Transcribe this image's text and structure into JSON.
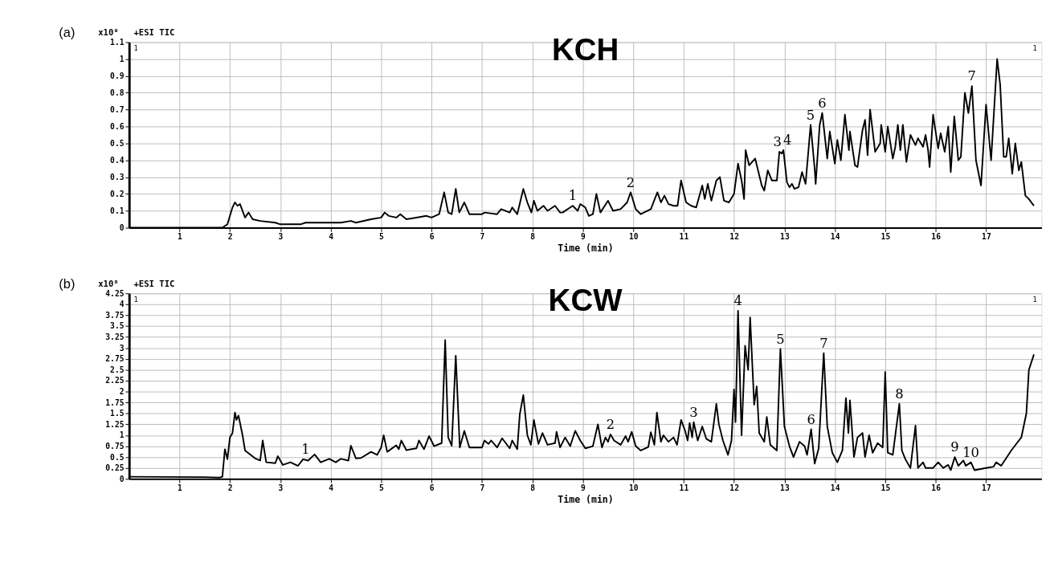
{
  "chart_data": [
    {
      "type": "line",
      "title": "KCH",
      "xlabel": "Time (min)",
      "xlim": [
        0,
        18.1
      ],
      "xticks": [
        1,
        2,
        3,
        4,
        5,
        6,
        7,
        8,
        9,
        10,
        11,
        12,
        13,
        14,
        15,
        16,
        17
      ],
      "ylim": [
        0,
        1.1
      ],
      "yticks": [
        0,
        0.1,
        0.2,
        0.3,
        0.4,
        0.5,
        0.6,
        0.7,
        0.8,
        0.9,
        1,
        1.1
      ],
      "grid": true,
      "marker": "none",
      "line_style": "solid",
      "annotations": [
        "(a)",
        "x10⁹",
        "+ESI TIC",
        "1",
        "1",
        {
          "text": "1",
          "x": 8.8,
          "y": 0.13
        },
        {
          "text": "2",
          "x": 9.95,
          "y": 0.21
        },
        {
          "text": "3",
          "x": 12.86,
          "y": 0.45
        },
        {
          "text": "4",
          "x": 13.06,
          "y": 0.46
        },
        {
          "text": "5",
          "x": 13.52,
          "y": 0.61
        },
        {
          "text": "6",
          "x": 13.75,
          "y": 0.68
        },
        {
          "text": "7",
          "x": 16.72,
          "y": 0.84
        }
      ],
      "series": [
        {
          "color": "#000000",
          "x": [
            0,
            1.85,
            1.95,
            2.05,
            2.1,
            2.15,
            2.2,
            2.3,
            2.37,
            2.45,
            2.6,
            2.9,
            3.0,
            3.4,
            3.5,
            3.6,
            3.8,
            4.2,
            4.4,
            4.5,
            4.8,
            5.0,
            5.07,
            5.15,
            5.3,
            5.38,
            5.5,
            5.9,
            6.0,
            6.15,
            6.25,
            6.33,
            6.4,
            6.48,
            6.55,
            6.65,
            6.75,
            7.0,
            7.05,
            7.3,
            7.38,
            7.55,
            7.6,
            7.7,
            7.78,
            7.82,
            7.9,
            7.98,
            8.03,
            8.1,
            8.22,
            8.3,
            8.45,
            8.55,
            8.6,
            8.8,
            8.9,
            8.95,
            9.05,
            9.12,
            9.2,
            9.27,
            9.35,
            9.5,
            9.6,
            9.75,
            9.88,
            9.95,
            10.05,
            10.15,
            10.35,
            10.48,
            10.55,
            10.62,
            10.7,
            10.8,
            10.88,
            10.95,
            11.05,
            11.15,
            11.25,
            11.37,
            11.42,
            11.48,
            11.55,
            11.65,
            11.72,
            11.8,
            11.9,
            12.0,
            12.08,
            12.15,
            12.2,
            12.23,
            12.3,
            12.42,
            12.55,
            12.6,
            12.67,
            12.75,
            12.85,
            12.9,
            12.95,
            12.98,
            13.05,
            13.1,
            13.15,
            13.2,
            13.28,
            13.35,
            13.42,
            13.52,
            13.6,
            13.62,
            13.7,
            13.75,
            13.85,
            13.9,
            14.0,
            14.05,
            14.12,
            14.2,
            14.28,
            14.3,
            14.4,
            14.45,
            14.55,
            14.6,
            14.65,
            14.7,
            14.8,
            14.9,
            14.92,
            15.0,
            15.05,
            15.15,
            15.2,
            15.25,
            15.3,
            15.35,
            15.42,
            15.5,
            15.6,
            15.65,
            15.75,
            15.8,
            15.85,
            15.88,
            15.95,
            16.05,
            16.1,
            16.18,
            16.25,
            16.3,
            16.37,
            16.45,
            16.5,
            16.58,
            16.65,
            16.72,
            16.8,
            16.9,
            17.0,
            17.1,
            17.22,
            17.28,
            17.35,
            17.4,
            17.45,
            17.52,
            17.58,
            17.65,
            17.7,
            17.78,
            17.85,
            17.95
          ],
          "values": [
            0,
            0,
            0.02,
            0.12,
            0.15,
            0.13,
            0.14,
            0.06,
            0.09,
            0.05,
            0.04,
            0.03,
            0.02,
            0.02,
            0.03,
            0.03,
            0.03,
            0.03,
            0.04,
            0.03,
            0.05,
            0.06,
            0.09,
            0.07,
            0.06,
            0.08,
            0.05,
            0.07,
            0.06,
            0.08,
            0.21,
            0.09,
            0.08,
            0.23,
            0.09,
            0.15,
            0.08,
            0.08,
            0.09,
            0.08,
            0.11,
            0.09,
            0.12,
            0.08,
            0.18,
            0.23,
            0.15,
            0.09,
            0.16,
            0.1,
            0.13,
            0.1,
            0.13,
            0.09,
            0.09,
            0.13,
            0.1,
            0.14,
            0.12,
            0.07,
            0.08,
            0.2,
            0.09,
            0.16,
            0.1,
            0.11,
            0.15,
            0.21,
            0.11,
            0.08,
            0.11,
            0.21,
            0.15,
            0.19,
            0.14,
            0.13,
            0.13,
            0.28,
            0.15,
            0.13,
            0.12,
            0.25,
            0.17,
            0.26,
            0.16,
            0.28,
            0.3,
            0.16,
            0.15,
            0.2,
            0.38,
            0.28,
            0.17,
            0.46,
            0.37,
            0.41,
            0.25,
            0.22,
            0.34,
            0.28,
            0.28,
            0.45,
            0.44,
            0.46,
            0.27,
            0.24,
            0.26,
            0.23,
            0.24,
            0.33,
            0.26,
            0.61,
            0.35,
            0.26,
            0.61,
            0.68,
            0.41,
            0.57,
            0.38,
            0.52,
            0.4,
            0.67,
            0.46,
            0.57,
            0.37,
            0.36,
            0.58,
            0.64,
            0.43,
            0.7,
            0.45,
            0.5,
            0.61,
            0.45,
            0.6,
            0.41,
            0.48,
            0.61,
            0.46,
            0.61,
            0.39,
            0.55,
            0.49,
            0.53,
            0.48,
            0.55,
            0.46,
            0.36,
            0.67,
            0.47,
            0.56,
            0.45,
            0.6,
            0.33,
            0.66,
            0.4,
            0.42,
            0.8,
            0.68,
            0.84,
            0.4,
            0.25,
            0.73,
            0.4,
            1.0,
            0.85,
            0.42,
            0.42,
            0.53,
            0.32,
            0.5,
            0.34,
            0.39,
            0.19,
            0.17,
            0.13
          ]
        }
      ]
    },
    {
      "type": "line",
      "title": "KCW",
      "xlabel": "Time (min)",
      "xlim": [
        0,
        18.1
      ],
      "xticks": [
        1,
        2,
        3,
        4,
        5,
        6,
        7,
        8,
        9,
        10,
        11,
        12,
        13,
        14,
        15,
        16,
        17
      ],
      "ylim": [
        0,
        4.25
      ],
      "yticks": [
        0,
        0.25,
        0.5,
        0.75,
        1,
        1.25,
        1.5,
        1.75,
        2,
        2.25,
        2.5,
        2.75,
        3,
        3.25,
        3.5,
        3.75,
        4,
        4.25
      ],
      "grid": true,
      "marker": "none",
      "line_style": "solid",
      "annotations": [
        "(b)",
        "x10⁸",
        "+ESI TIC",
        "1",
        "1",
        {
          "text": "1",
          "x": 3.5,
          "y": 0.45
        },
        {
          "text": "2",
          "x": 9.55,
          "y": 1.02
        },
        {
          "text": "3",
          "x": 11.2,
          "y": 1.3
        },
        {
          "text": "4",
          "x": 12.08,
          "y": 3.85
        },
        {
          "text": "5",
          "x": 12.92,
          "y": 2.98
        },
        {
          "text": "6",
          "x": 13.53,
          "y": 1.14
        },
        {
          "text": "7",
          "x": 13.78,
          "y": 2.88
        },
        {
          "text": "8",
          "x": 15.28,
          "y": 1.72
        },
        {
          "text": "9",
          "x": 16.38,
          "y": 0.5
        },
        {
          "text": "10",
          "x": 16.7,
          "y": 0.38
        }
      ],
      "series": [
        {
          "color": "#000000",
          "x": [
            0,
            1.5,
            1.8,
            1.85,
            1.9,
            1.95,
            2.0,
            2.05,
            2.1,
            2.13,
            2.17,
            2.25,
            2.3,
            2.5,
            2.6,
            2.65,
            2.72,
            2.9,
            2.95,
            3.05,
            3.2,
            3.35,
            3.45,
            3.55,
            3.68,
            3.8,
            3.97,
            4.1,
            4.2,
            4.35,
            4.4,
            4.5,
            4.6,
            4.8,
            4.92,
            5.0,
            5.05,
            5.12,
            5.3,
            5.35,
            5.4,
            5.5,
            5.7,
            5.75,
            5.85,
            5.95,
            6.05,
            6.2,
            6.27,
            6.33,
            6.4,
            6.48,
            6.56,
            6.65,
            6.75,
            7.0,
            7.05,
            7.13,
            7.18,
            7.3,
            7.4,
            7.55,
            7.6,
            7.7,
            7.75,
            7.82,
            7.9,
            7.97,
            8.03,
            8.12,
            8.2,
            8.3,
            8.45,
            8.48,
            8.55,
            8.65,
            8.75,
            8.85,
            8.95,
            9.05,
            9.2,
            9.3,
            9.38,
            9.45,
            9.5,
            9.55,
            9.62,
            9.75,
            9.85,
            9.9,
            9.97,
            10.05,
            10.15,
            10.3,
            10.35,
            10.42,
            10.47,
            10.55,
            10.6,
            10.7,
            10.8,
            10.87,
            10.95,
            11.03,
            11.08,
            11.12,
            11.17,
            11.2,
            11.28,
            11.37,
            11.45,
            11.55,
            11.65,
            11.7,
            11.78,
            11.88,
            11.95,
            12.0,
            12.03,
            12.08,
            12.15,
            12.22,
            12.28,
            12.32,
            12.4,
            12.45,
            12.5,
            12.6,
            12.65,
            12.72,
            12.85,
            12.92,
            13.0,
            13.1,
            13.18,
            13.3,
            13.4,
            13.45,
            13.53,
            13.6,
            13.68,
            13.78,
            13.85,
            13.95,
            14.05,
            14.15,
            14.22,
            14.27,
            14.3,
            14.38,
            14.45,
            14.55,
            14.6,
            14.68,
            14.75,
            14.85,
            14.95,
            15.0,
            15.05,
            15.15,
            15.28,
            15.33,
            15.4,
            15.5,
            15.6,
            15.65,
            15.75,
            15.8,
            15.95,
            16.05,
            16.15,
            16.25,
            16.3,
            16.38,
            16.45,
            16.55,
            16.6,
            16.7,
            16.77,
            17.0,
            17.15,
            17.2,
            17.3,
            17.5,
            17.7,
            17.8,
            17.85,
            17.95
          ],
          "values": [
            0.05,
            0.04,
            0.03,
            0.05,
            0.68,
            0.45,
            0.95,
            1.05,
            1.52,
            1.35,
            1.45,
            1.0,
            0.65,
            0.47,
            0.42,
            0.88,
            0.38,
            0.36,
            0.52,
            0.32,
            0.38,
            0.3,
            0.45,
            0.42,
            0.56,
            0.38,
            0.46,
            0.38,
            0.46,
            0.42,
            0.76,
            0.47,
            0.48,
            0.62,
            0.55,
            0.72,
            1.0,
            0.62,
            0.77,
            0.68,
            0.88,
            0.66,
            0.7,
            0.88,
            0.68,
            0.98,
            0.75,
            0.82,
            3.18,
            0.95,
            0.76,
            2.82,
            0.72,
            1.1,
            0.72,
            0.72,
            0.88,
            0.8,
            0.88,
            0.72,
            0.93,
            0.7,
            0.88,
            0.68,
            1.48,
            1.92,
            1.0,
            0.78,
            1.35,
            0.8,
            1.05,
            0.78,
            0.82,
            1.08,
            0.72,
            0.95,
            0.75,
            1.1,
            0.88,
            0.7,
            0.75,
            1.25,
            0.72,
            0.95,
            0.85,
            1.02,
            0.88,
            0.78,
            0.98,
            0.85,
            1.08,
            0.75,
            0.65,
            0.73,
            1.07,
            0.78,
            1.52,
            0.85,
            1.0,
            0.85,
            0.95,
            0.78,
            1.35,
            1.1,
            0.88,
            1.28,
            0.95,
            1.3,
            0.88,
            1.2,
            0.92,
            0.85,
            1.72,
            1.25,
            0.88,
            0.55,
            0.88,
            2.05,
            1.3,
            3.85,
            1.0,
            3.05,
            2.5,
            3.7,
            1.7,
            2.12,
            1.05,
            0.85,
            1.42,
            0.78,
            0.65,
            2.98,
            1.2,
            0.75,
            0.5,
            0.85,
            0.75,
            0.55,
            1.14,
            0.35,
            0.7,
            2.88,
            1.2,
            0.6,
            0.38,
            0.65,
            1.85,
            1.05,
            1.8,
            0.5,
            0.95,
            1.05,
            0.5,
            1.0,
            0.6,
            0.82,
            0.72,
            2.45,
            0.6,
            0.55,
            1.72,
            0.65,
            0.45,
            0.25,
            1.22,
            0.25,
            0.38,
            0.25,
            0.25,
            0.38,
            0.25,
            0.32,
            0.2,
            0.5,
            0.3,
            0.42,
            0.3,
            0.38,
            0.2,
            0.25,
            0.28,
            0.38,
            0.3,
            0.65,
            0.95,
            1.5,
            2.5,
            2.85
          ]
        }
      ]
    }
  ]
}
